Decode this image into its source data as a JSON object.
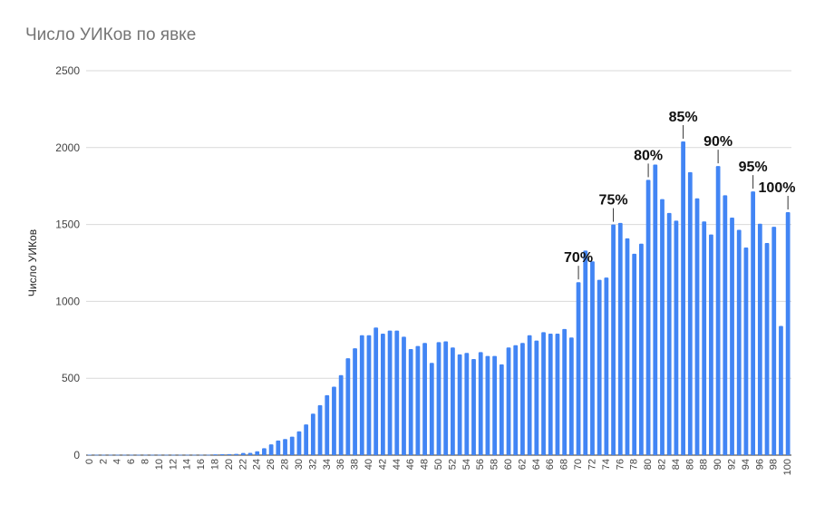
{
  "chart_data": {
    "type": "bar",
    "title": "Число УИКов по явке",
    "xlabel": "",
    "ylabel": "Число УИКов",
    "ylim": [
      0,
      2500
    ],
    "yticks": [
      0,
      500,
      1000,
      1500,
      2000,
      2500
    ],
    "grid": true,
    "legend": "none",
    "bar_color": "#4285f4",
    "x": [
      0,
      1,
      2,
      3,
      4,
      5,
      6,
      7,
      8,
      9,
      10,
      11,
      12,
      13,
      14,
      15,
      16,
      17,
      18,
      19,
      20,
      21,
      22,
      23,
      24,
      25,
      26,
      27,
      28,
      29,
      30,
      31,
      32,
      33,
      34,
      35,
      36,
      37,
      38,
      39,
      40,
      41,
      42,
      43,
      44,
      45,
      46,
      47,
      48,
      49,
      50,
      51,
      52,
      53,
      54,
      55,
      56,
      57,
      58,
      59,
      60,
      61,
      62,
      63,
      64,
      65,
      66,
      67,
      68,
      69,
      70,
      71,
      72,
      73,
      74,
      75,
      76,
      77,
      78,
      79,
      80,
      81,
      82,
      83,
      84,
      85,
      86,
      87,
      88,
      89,
      90,
      91,
      92,
      93,
      94,
      95,
      96,
      97,
      98,
      99,
      100
    ],
    "values": [
      3,
      2,
      2,
      2,
      2,
      2,
      2,
      2,
      2,
      2,
      2,
      2,
      2,
      2,
      2,
      2,
      2,
      2,
      5,
      6,
      7,
      8,
      14,
      15,
      25,
      45,
      70,
      95,
      105,
      120,
      155,
      200,
      270,
      325,
      390,
      445,
      520,
      630,
      695,
      780,
      780,
      830,
      790,
      810,
      810,
      770,
      690,
      710,
      730,
      600,
      735,
      740,
      700,
      655,
      665,
      625,
      670,
      645,
      645,
      590,
      700,
      715,
      730,
      780,
      745,
      800,
      790,
      790,
      820,
      765,
      1125,
      1330,
      1260,
      1140,
      1155,
      1500,
      1510,
      1410,
      1310,
      1375,
      1790,
      1890,
      1665,
      1575,
      1525,
      2040,
      1840,
      1670,
      1520,
      1435,
      1880,
      1690,
      1545,
      1465,
      1350,
      1715,
      1505,
      1380,
      1485,
      840,
      1580
    ],
    "annotations": [
      {
        "label": "70%",
        "x": 70
      },
      {
        "label": "75%",
        "x": 75
      },
      {
        "label": "80%",
        "x": 80
      },
      {
        "label": "85%",
        "x": 85
      },
      {
        "label": "90%",
        "x": 90
      },
      {
        "label": "95%",
        "x": 95
      },
      {
        "label": "100%",
        "x": 100
      }
    ]
  }
}
